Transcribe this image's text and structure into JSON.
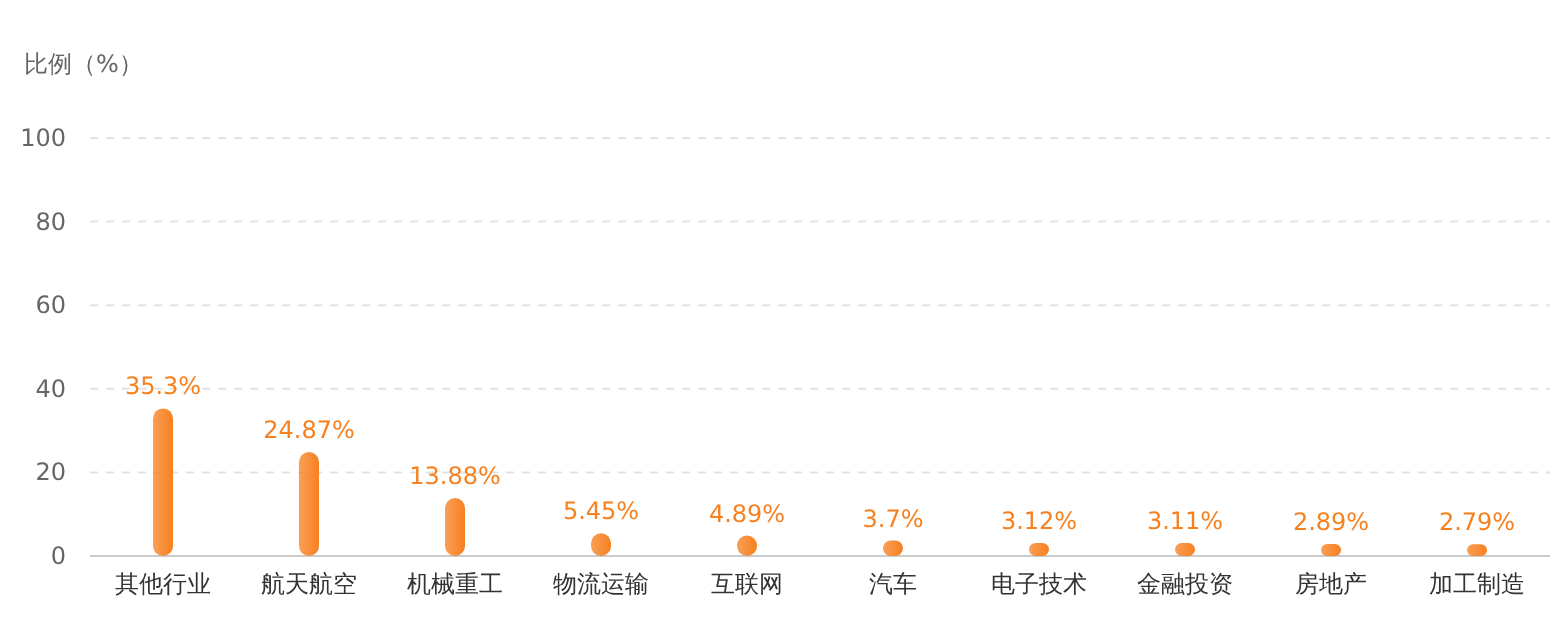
{
  "chart_data": {
    "type": "bar",
    "ylabel": "比例（%）",
    "categories": [
      "其他行业",
      "航天航空",
      "机械重工",
      "物流运输",
      "互联网",
      "汽车",
      "电子技术",
      "金融投资",
      "房地产",
      "加工制造"
    ],
    "values": [
      35.3,
      24.87,
      13.88,
      5.45,
      4.89,
      3.7,
      3.12,
      3.11,
      2.89,
      2.79
    ],
    "value_labels": [
      "35.3%",
      "24.87%",
      "13.88%",
      "5.45%",
      "4.89%",
      "3.7%",
      "3.12%",
      "3.11%",
      "2.89%",
      "2.79%"
    ],
    "color": "#f7801f",
    "ylim": [
      0,
      100
    ],
    "yticks": [
      0,
      20,
      40,
      60,
      80,
      100
    ],
    "grid": "y"
  }
}
